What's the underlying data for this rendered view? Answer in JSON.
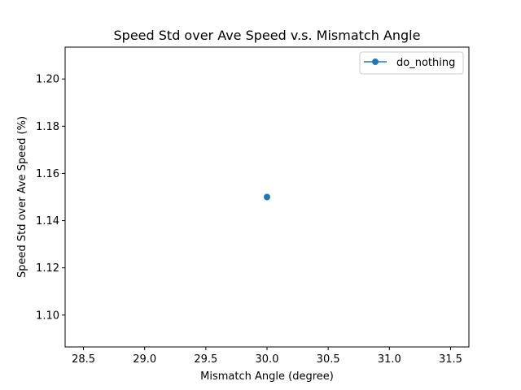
{
  "chart_data": {
    "type": "line",
    "title": "Speed Std over Ave Speed v.s. Mismatch Angle",
    "xlabel": "Mismatch Angle (degree)",
    "ylabel": "Speed Std over Ave Speed (%)",
    "xlim": [
      28.35,
      31.65
    ],
    "ylim": [
      1.0865,
      1.2135
    ],
    "xticks": [
      28.5,
      29.0,
      29.5,
      30.0,
      30.5,
      31.0,
      31.5
    ],
    "xtick_labels": [
      "28.5",
      "29.0",
      "29.5",
      "30.0",
      "30.5",
      "31.0",
      "31.5"
    ],
    "yticks": [
      1.1,
      1.12,
      1.14,
      1.16,
      1.18,
      1.2
    ],
    "ytick_labels": [
      "1.10",
      "1.12",
      "1.14",
      "1.16",
      "1.18",
      "1.20"
    ],
    "grid": false,
    "legend_position": "top-right",
    "series": [
      {
        "name": "do_nothing",
        "color": "#1f77b4",
        "marker": "circle",
        "x": [
          30.0
        ],
        "y": [
          1.15
        ]
      }
    ]
  }
}
